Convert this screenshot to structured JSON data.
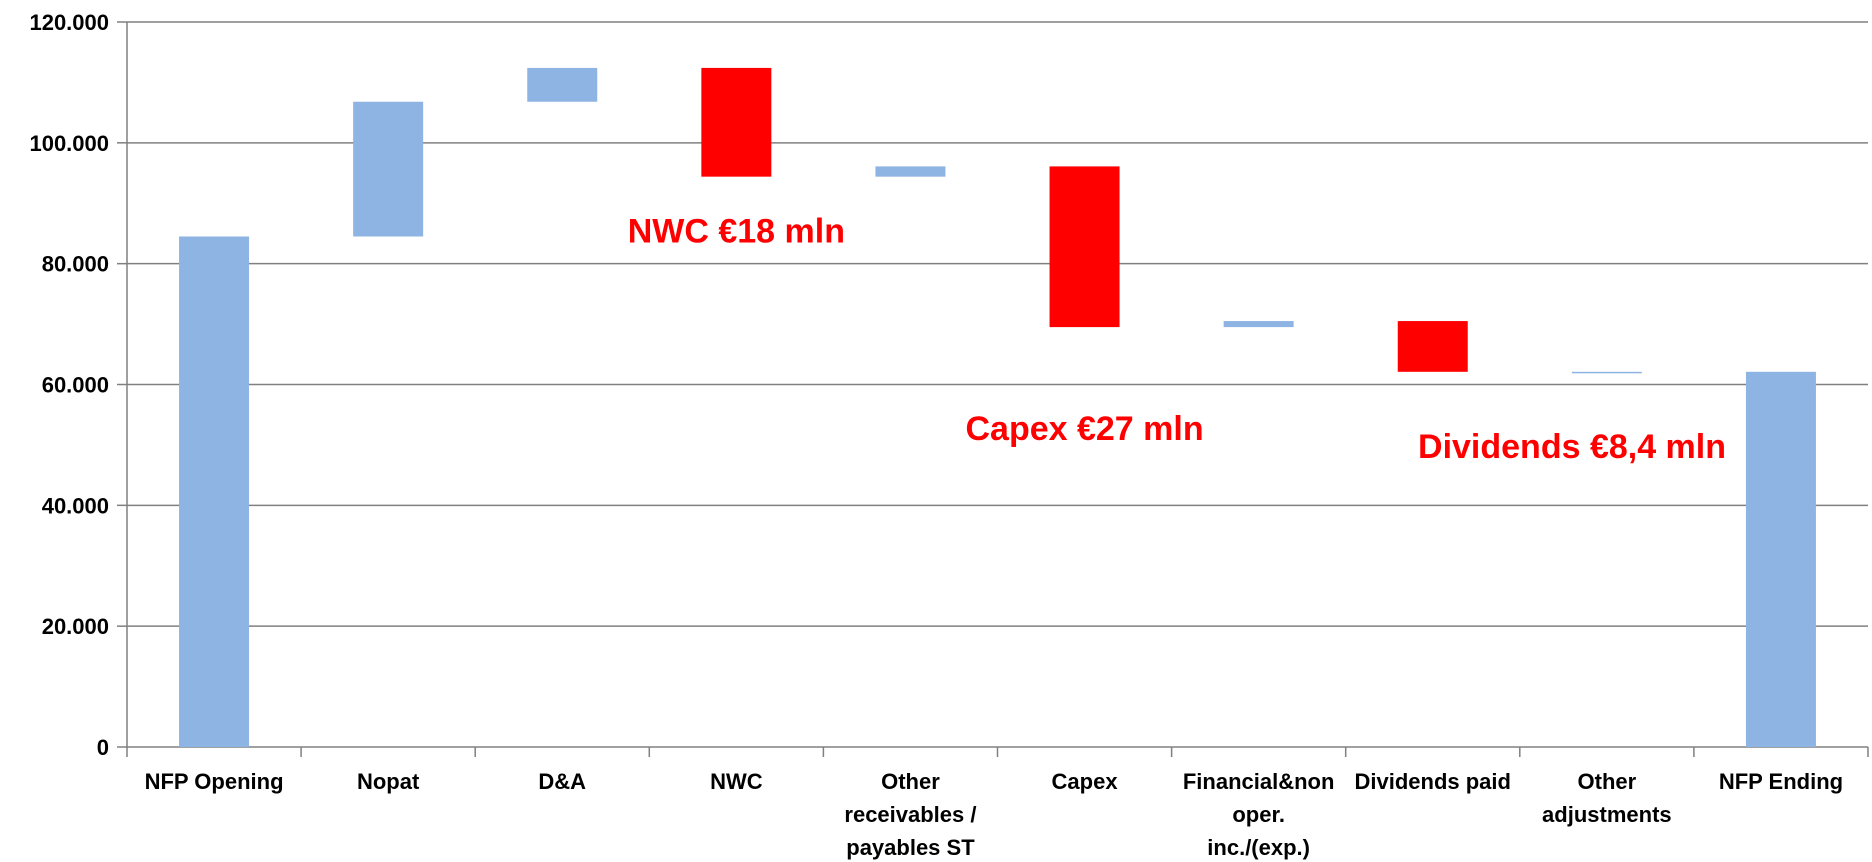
{
  "chart_data": {
    "type": "bar",
    "subtype": "waterfall",
    "title": "",
    "xlabel": "",
    "ylabel": "",
    "ylim": [
      0,
      120000
    ],
    "yticks": [
      "0",
      "20.000",
      "40.000",
      "60.000",
      "80.000",
      "100.000",
      "120.000"
    ],
    "grid": true,
    "categories": [
      [
        "NFP Opening"
      ],
      [
        "Nopat"
      ],
      [
        "D&A"
      ],
      [
        "NWC"
      ],
      [
        "Other",
        "receivables /",
        "payables ST"
      ],
      [
        "Capex"
      ],
      [
        "Financial&non",
        "oper.",
        "inc./(exp.)"
      ],
      [
        "Dividends paid"
      ],
      [
        "Other",
        "adjustments"
      ],
      [
        "NFP Ending"
      ]
    ],
    "bars": [
      {
        "low": 0,
        "high": 84500,
        "color": "#8eb4e3"
      },
      {
        "low": 84500,
        "high": 106800,
        "color": "#8eb4e3"
      },
      {
        "low": 106800,
        "high": 112400,
        "color": "#8eb4e3"
      },
      {
        "low": 94400,
        "high": 112400,
        "color": "#ff0000"
      },
      {
        "low": 94400,
        "high": 96100,
        "color": "#8eb4e3"
      },
      {
        "low": 69500,
        "high": 96100,
        "color": "#ff0000"
      },
      {
        "low": 69500,
        "high": 70500,
        "color": "#8eb4e3"
      },
      {
        "low": 62100,
        "high": 70500,
        "color": "#ff0000"
      },
      {
        "low": 61900,
        "high": 62100,
        "color": "#8eb4e3"
      },
      {
        "low": 0,
        "high": 62100,
        "color": "#8eb4e3"
      }
    ],
    "annotations": [
      {
        "text": "NWC €18 mln",
        "category_index": 3,
        "y": 83500
      },
      {
        "text": "Capex €27 mln",
        "category_index": 5,
        "y": 50800
      },
      {
        "text": "Dividends €8,4 mln",
        "category_index": 7.8,
        "y": 47800
      }
    ],
    "colors": {
      "positive": "#8eb4e3",
      "negative": "#ff0000",
      "grid": "#808080"
    }
  }
}
